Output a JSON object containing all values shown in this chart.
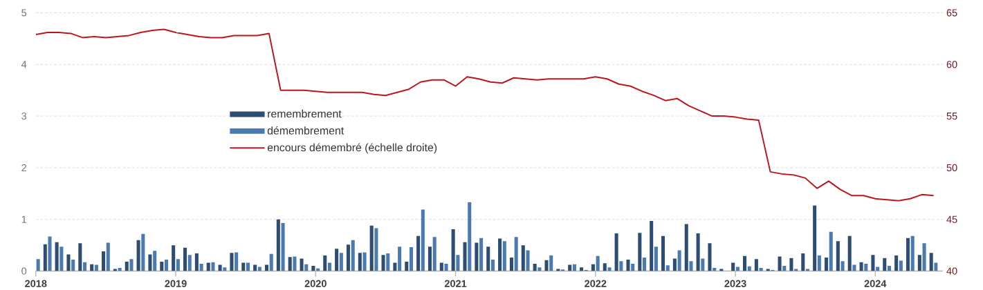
{
  "chart_data": {
    "type": "bar",
    "x": [
      "2018-01",
      "2018-02",
      "2018-03",
      "2018-04",
      "2018-05",
      "2018-06",
      "2018-07",
      "2018-08",
      "2018-09",
      "2018-10",
      "2018-11",
      "2018-12",
      "2019-01",
      "2019-02",
      "2019-03",
      "2019-04",
      "2019-05",
      "2019-06",
      "2019-07",
      "2019-08",
      "2019-09",
      "2019-10",
      "2019-11",
      "2019-12",
      "2020-01",
      "2020-02",
      "2020-03",
      "2020-04",
      "2020-05",
      "2020-06",
      "2020-07",
      "2020-08",
      "2020-09",
      "2020-10",
      "2020-11",
      "2020-12",
      "2021-01",
      "2021-02",
      "2021-03",
      "2021-04",
      "2021-05",
      "2021-06",
      "2021-07",
      "2021-08",
      "2021-09",
      "2021-10",
      "2021-11",
      "2021-12",
      "2022-01",
      "2022-02",
      "2022-03",
      "2022-04",
      "2022-05",
      "2022-06",
      "2022-07",
      "2022-08",
      "2022-09",
      "2022-10",
      "2022-11",
      "2022-12",
      "2023-01",
      "2023-02",
      "2023-03",
      "2023-04",
      "2023-05",
      "2023-06",
      "2023-07",
      "2023-08",
      "2023-09",
      "2023-10",
      "2023-11",
      "2023-12",
      "2024-01",
      "2024-02",
      "2024-03",
      "2024-04",
      "2024-05",
      "2024-06"
    ],
    "series": [
      {
        "name": "remembrement",
        "color": "#2e4d75",
        "values": [
          null,
          0.52,
          0.56,
          0.32,
          0.54,
          0.13,
          0.38,
          0.04,
          0.18,
          0.6,
          0.32,
          0.18,
          0.5,
          0.45,
          0.34,
          0.16,
          0.12,
          0.35,
          0.16,
          0.12,
          0.12,
          1.0,
          0.27,
          0.24,
          0.1,
          0.3,
          0.43,
          0.51,
          0.35,
          0.88,
          0.31,
          0.16,
          0.18,
          0.68,
          0.47,
          0.16,
          0.81,
          0.56,
          0.55,
          0.47,
          0.63,
          0.26,
          0.5,
          0.14,
          0.21,
          0.04,
          0.12,
          0.07,
          0.13,
          0.15,
          0.73,
          0.22,
          0.74,
          0.97,
          0.68,
          0.24,
          0.91,
          0.73,
          0.54,
          0.04,
          0.16,
          0.29,
          0.23,
          0.04,
          0.28,
          0.25,
          0.34,
          1.27,
          0.26,
          0.58,
          0.68,
          0.17,
          0.31,
          0.25,
          0.3,
          0.64,
          0.31,
          0.35
        ]
      },
      {
        "name": "démembrement",
        "color": "#4a7ab0",
        "values": [
          0.23,
          0.67,
          0.47,
          0.22,
          0.17,
          0.12,
          0.55,
          0.06,
          0.23,
          0.72,
          0.39,
          0.22,
          0.23,
          0.31,
          0.14,
          0.17,
          0.07,
          0.36,
          0.16,
          0.08,
          0.33,
          0.93,
          0.28,
          0.13,
          0.05,
          0.16,
          0.35,
          0.6,
          0.36,
          0.83,
          0.34,
          0.47,
          0.46,
          1.19,
          0.66,
          0.14,
          0.31,
          1.33,
          0.64,
          0.22,
          0.58,
          0.66,
          0.4,
          0.07,
          0.3,
          0.03,
          0.13,
          0.02,
          0.29,
          0.07,
          0.19,
          0.14,
          0.26,
          0.47,
          0.11,
          0.4,
          0.19,
          0.24,
          0.06,
          null,
          0.08,
          0.09,
          0.06,
          0.02,
          0.1,
          0.04,
          0.04,
          0.3,
          0.76,
          0.19,
          0.12,
          0.14,
          0.08,
          0.1,
          0.2,
          0.68,
          0.54,
          0.16
        ]
      },
      {
        "name": "encours démembré (échelle droite)",
        "type": "line",
        "axis": "y2",
        "color": "#c0141c",
        "values": [
          62.9,
          63.1,
          63.1,
          63.0,
          62.6,
          62.7,
          62.6,
          62.7,
          62.8,
          63.1,
          63.3,
          63.4,
          63.1,
          62.9,
          62.7,
          62.6,
          62.6,
          62.8,
          62.8,
          62.8,
          63.0,
          57.5,
          57.5,
          57.5,
          57.4,
          57.3,
          57.3,
          57.3,
          57.3,
          57.1,
          57.0,
          57.3,
          57.6,
          58.3,
          58.5,
          58.5,
          57.9,
          58.8,
          58.6,
          58.3,
          58.2,
          58.7,
          58.6,
          58.5,
          58.6,
          58.6,
          58.6,
          58.6,
          58.8,
          58.6,
          58.1,
          57.9,
          57.4,
          57.0,
          56.5,
          56.7,
          56.0,
          55.5,
          55.0,
          55.0,
          54.9,
          54.7,
          54.6,
          49.6,
          49.4,
          49.3,
          49.0,
          48.0,
          48.7,
          47.9,
          47.3,
          47.3,
          47.0,
          46.9,
          46.8,
          47.0,
          47.4,
          47.3
        ]
      }
    ],
    "xlim": [
      "2018-01",
      "2024-06-25"
    ],
    "xticks": [
      "2018",
      "2019",
      "2020",
      "2021",
      "2022",
      "2023",
      "2024"
    ],
    "ylim": [
      0,
      5
    ],
    "yticks": [
      0,
      1,
      2,
      3,
      4,
      5
    ],
    "y2lim": [
      40,
      65
    ],
    "y2ticks": [
      40,
      45,
      50,
      55,
      60,
      65
    ],
    "grid": "y",
    "legend": "left"
  }
}
